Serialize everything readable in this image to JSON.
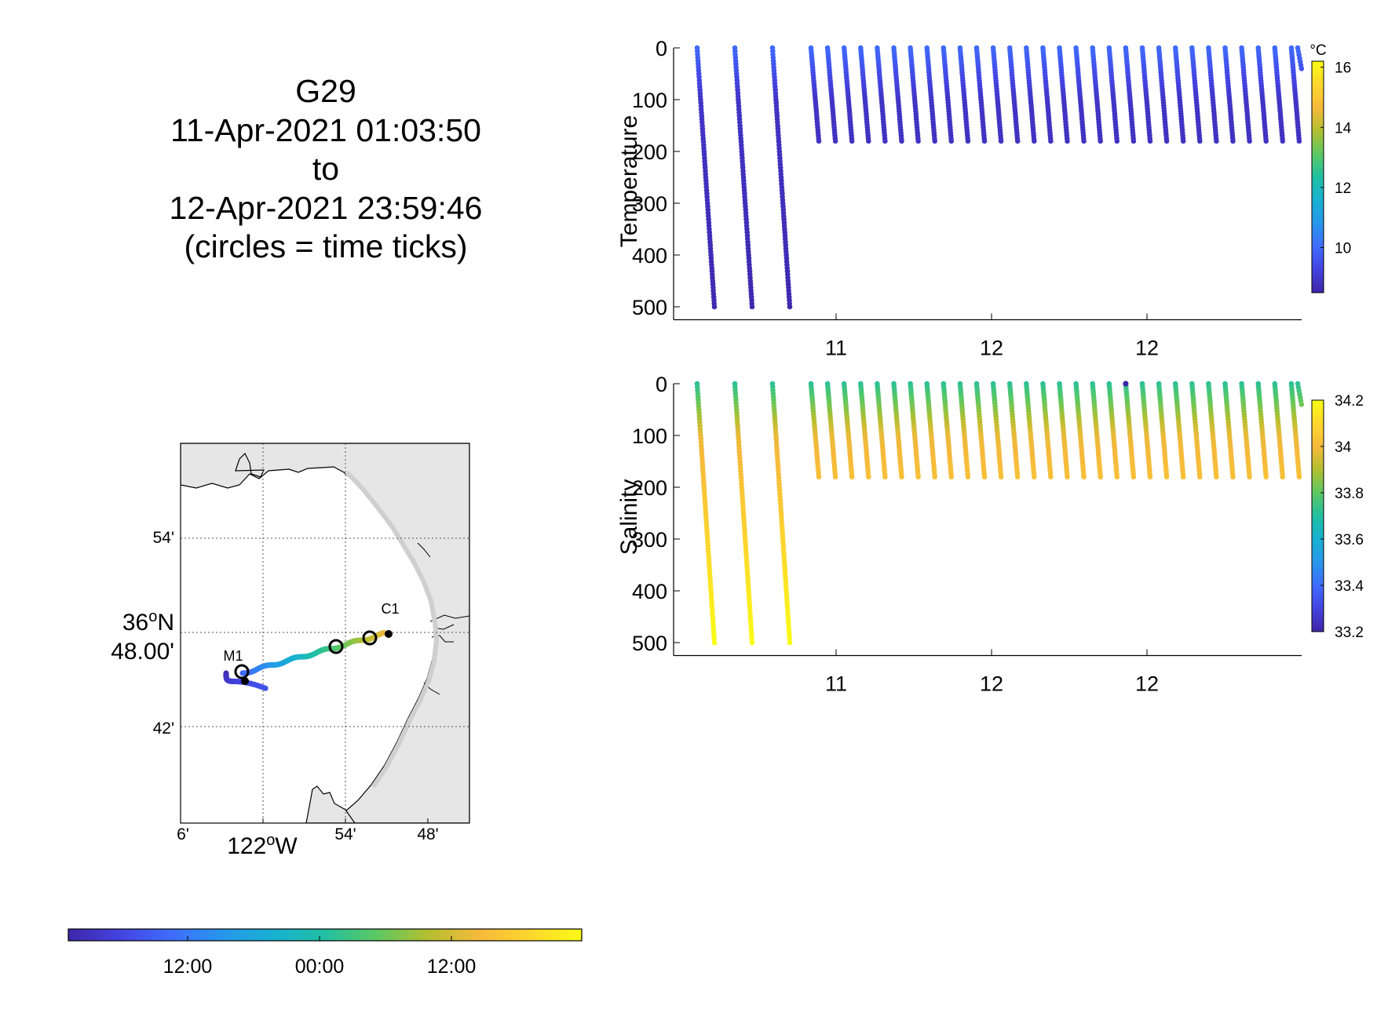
{
  "title_lines": [
    "G29",
    "11-Apr-2021 01:03:50",
    "to",
    "12-Apr-2021 23:59:46",
    "(circles = time ticks)"
  ],
  "colors": {
    "colormap": [
      "#3e26a8",
      "#4443e0",
      "#3f6cfc",
      "#2797eb",
      "#18b1d2",
      "#21bfa1",
      "#5cc863",
      "#b3bf31",
      "#f6b93c",
      "#fdd72d",
      "#f9fb15"
    ],
    "land": "#e6e6e6",
    "coast": "#000000"
  },
  "map": {
    "lat_labels": [
      {
        "text": "54'",
        "style": "minor"
      },
      {
        "lines": [
          "36",
          "o",
          "N",
          "48.00'"
        ],
        "style": "major"
      },
      {
        "text": "42'",
        "style": "minor"
      }
    ],
    "lon_labels": [
      {
        "text": "6'",
        "style": "minor"
      },
      {
        "lines": [
          "122",
          "o",
          "W"
        ],
        "style": "major"
      },
      {
        "text": "54'",
        "style": "minor"
      },
      {
        "text": "48'",
        "style": "minor"
      }
    ],
    "stations": [
      {
        "name": "M1"
      },
      {
        "name": "C1"
      }
    ]
  },
  "time_colorbar": {
    "ticks": [
      "12:00",
      "00:00",
      "12:00"
    ]
  },
  "chart_data": [
    {
      "type": "scatter",
      "name": "temperature-section",
      "ylabel": "Temperature",
      "xlabel": "",
      "x_ticks": [
        "11",
        "12",
        "12"
      ],
      "y_ticks": [
        0,
        100,
        200,
        300,
        400,
        500
      ],
      "ylim": [
        500,
        0
      ],
      "colorbar": {
        "unit": "°C",
        "range": [
          8.5,
          16.2
        ],
        "ticks": [
          10,
          12,
          14,
          16
        ]
      },
      "profiles": {
        "deep_count": 3,
        "shallow_count": 30,
        "deep_max_depth": 500,
        "shallow_max_depth": 180
      },
      "value_profile": {
        "surface": 10.0,
        "depth_100": 8.9,
        "depth_500": 8.6
      },
      "anomaly_point": null
    },
    {
      "type": "scatter",
      "name": "salinity-section",
      "ylabel": "Salinity",
      "xlabel": "",
      "x_ticks": [
        "11",
        "12",
        "12"
      ],
      "y_ticks": [
        0,
        100,
        200,
        300,
        400,
        500
      ],
      "ylim": [
        500,
        0
      ],
      "colorbar": {
        "unit": "",
        "range": [
          33.2,
          34.2
        ],
        "ticks": [
          33.2,
          33.4,
          33.6,
          33.8,
          34,
          34.2
        ]
      },
      "profiles": {
        "deep_count": 3,
        "shallow_count": 30,
        "deep_max_depth": 500,
        "shallow_max_depth": 180
      },
      "value_profile": {
        "surface": 33.72,
        "depth_100": 33.98,
        "depth_500": 34.2
      },
      "anomaly_point": {
        "profile": 19,
        "depth": 0,
        "value": 33.2
      }
    }
  ]
}
